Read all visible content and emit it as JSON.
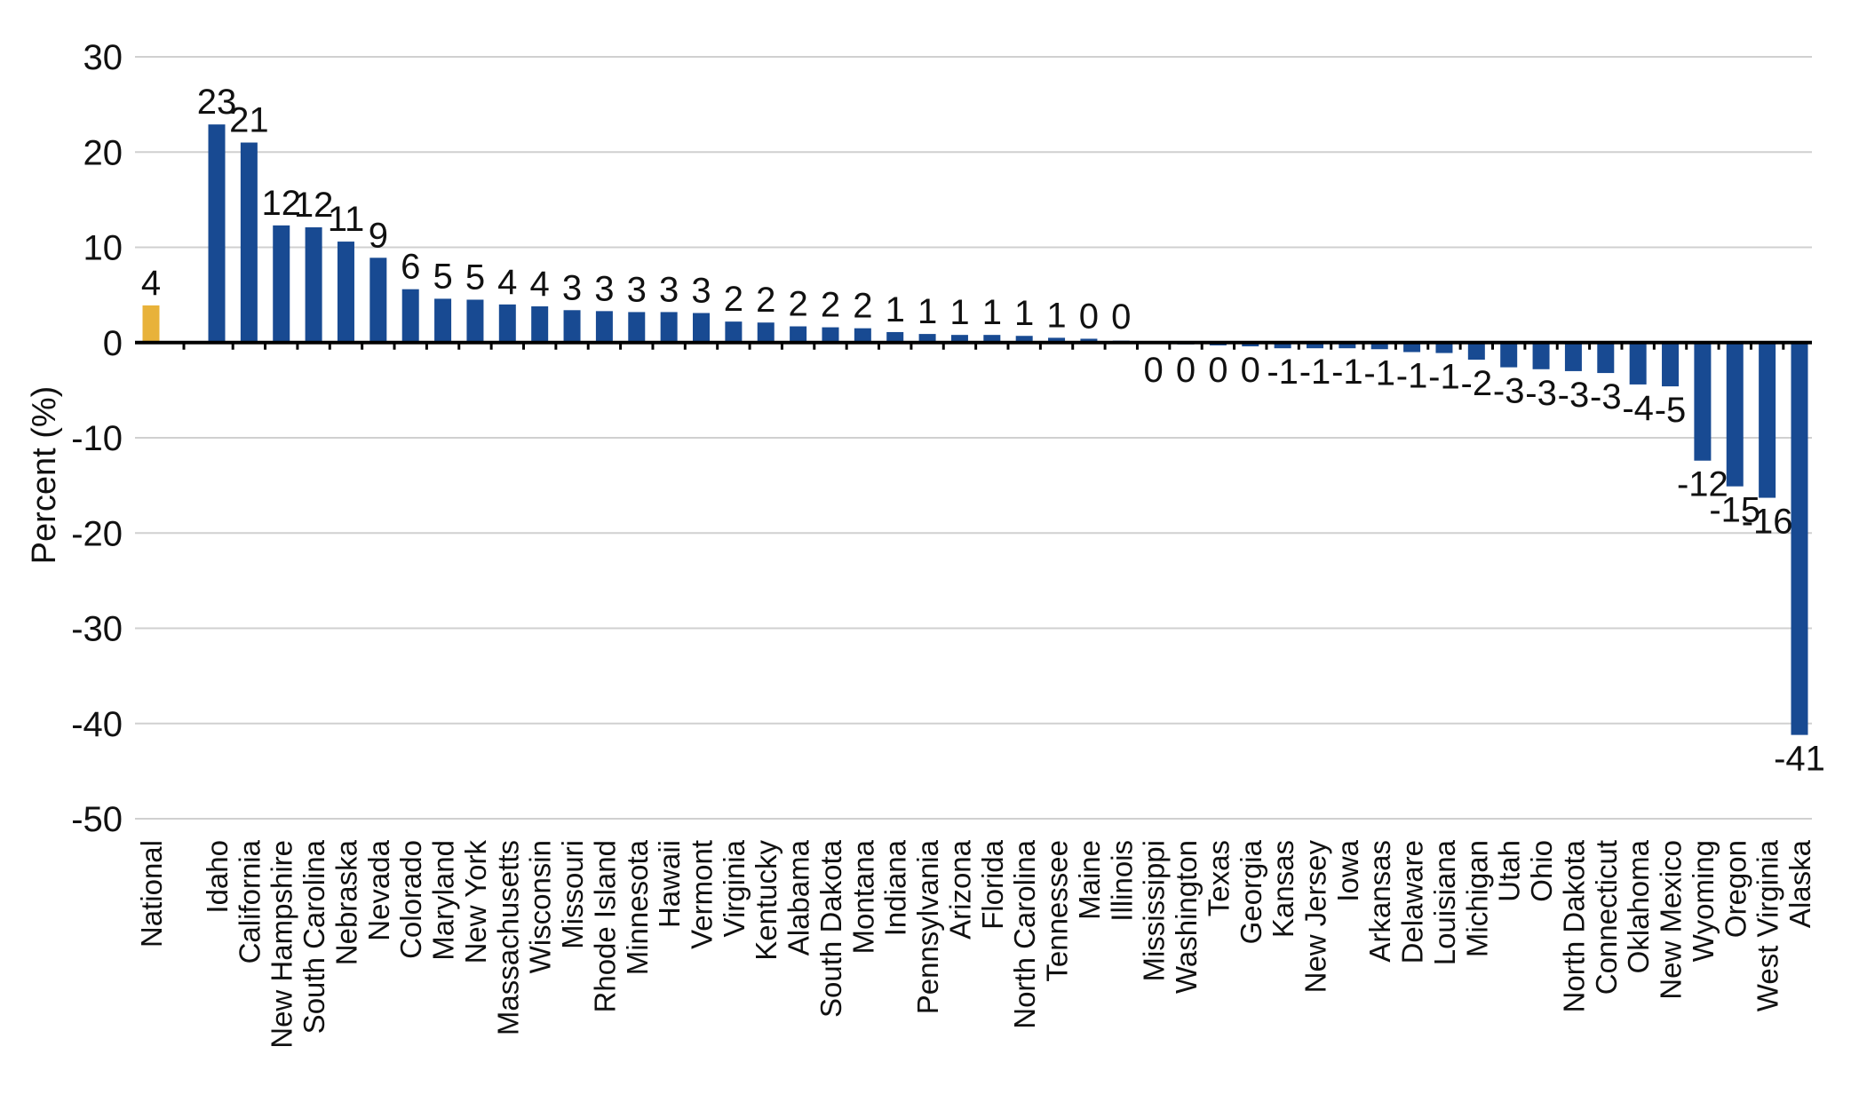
{
  "chart_data": {
    "type": "bar",
    "ylabel": "Percent (%)",
    "ylim": [
      -50,
      30
    ],
    "yticks": [
      30,
      20,
      10,
      0,
      -10,
      -20,
      -30,
      -40,
      -50
    ],
    "grid": true,
    "legend": "none",
    "colors": {
      "highlight": "#E8B23A",
      "bar": "#184A92",
      "grid": "#D0D0D0",
      "axis": "#000000"
    },
    "gap_after_first": true,
    "categories": [
      "National",
      "Idaho",
      "California",
      "New Hampshire",
      "South Carolina",
      "Nebraska",
      "Nevada",
      "Colorado",
      "Maryland",
      "New York",
      "Massachusetts",
      "Wisconsin",
      "Missouri",
      "Rhode Island",
      "Minnesota",
      "Hawaii",
      "Vermont",
      "Virginia",
      "Kentucky",
      "Alabama",
      "South Dakota",
      "Montana",
      "Indiana",
      "Pennsylvania",
      "Arizona",
      "Florida",
      "North Carolina",
      "Tennessee",
      "Maine",
      "Illinois",
      "Mississippi",
      "Washington",
      "Texas",
      "Georgia",
      "Kansas",
      "New Jersey",
      "Iowa",
      "Arkansas",
      "Delaware",
      "Louisiana",
      "Michigan",
      "Utah",
      "Ohio",
      "North Dakota",
      "Connecticut",
      "Oklahoma",
      "New Mexico",
      "Wyoming",
      "Oregon",
      "West Virginia",
      "Alaska"
    ],
    "values": [
      3.9,
      22.9,
      21.0,
      12.3,
      12.1,
      10.6,
      8.9,
      5.6,
      4.6,
      4.5,
      4.0,
      3.8,
      3.4,
      3.3,
      3.2,
      3.2,
      3.1,
      2.2,
      2.1,
      1.7,
      1.6,
      1.5,
      1.1,
      0.9,
      0.8,
      0.8,
      0.7,
      0.5,
      0.4,
      0.2,
      -0.1,
      -0.2,
      -0.3,
      -0.4,
      -0.6,
      -0.6,
      -0.6,
      -0.7,
      -1.0,
      -1.1,
      -1.8,
      -2.6,
      -2.8,
      -3.0,
      -3.2,
      -4.4,
      -4.6,
      -12.4,
      -15.1,
      -16.3,
      -41.2
    ],
    "value_labels": [
      "4",
      "23",
      "21",
      "12",
      "12",
      "11",
      "9",
      "6",
      "5",
      "5",
      "4",
      "4",
      "3",
      "3",
      "3",
      "3",
      "3",
      "2",
      "2",
      "2",
      "2",
      "2",
      "1",
      "1",
      "1",
      "1",
      "1",
      "1",
      "0",
      "0",
      "0",
      "0",
      "0",
      "0",
      "-1",
      "-1",
      "-1",
      "-1",
      "-1",
      "-1",
      "-2",
      "-3",
      "-3",
      "-3",
      "-3",
      "-4",
      "-5",
      "-12",
      "-15",
      "-16",
      "-41"
    ]
  }
}
